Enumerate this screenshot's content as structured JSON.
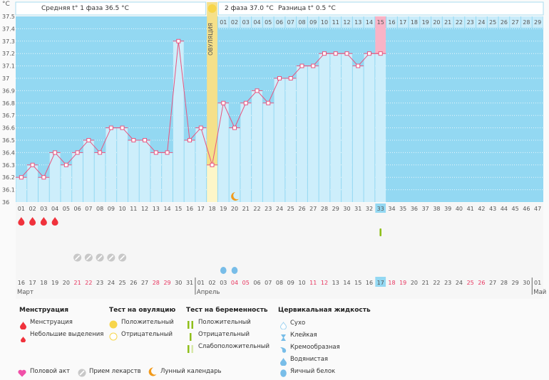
{
  "header": {
    "phase1_label": "Средняя t° 1 фаза 36.5 °C",
    "phase2_label": "2 фаза 37.0 °C",
    "difference_label": "Разница t° 0.5 °C",
    "ovulation_label": "ОВУЛЯЦИЯ",
    "unit": "°C"
  },
  "chart_data": {
    "type": "line",
    "ylabel": "°C",
    "ylim": [
      36.0,
      37.5
    ],
    "y_ticks": [
      "36",
      "36.1",
      "36.2",
      "36.3",
      "36.4",
      "36.5",
      "36.6",
      "36.7",
      "36.8",
      "36.9",
      "37",
      "37.1",
      "37.2",
      "37.3",
      "37.4",
      "37.5"
    ],
    "grid": true,
    "cycle_days": [
      "01",
      "02",
      "03",
      "04",
      "05",
      "06",
      "07",
      "08",
      "09",
      "10",
      "11",
      "12",
      "13",
      "14",
      "15",
      "16",
      "17",
      "18",
      "19",
      "20",
      "21",
      "22",
      "23",
      "24",
      "25",
      "26",
      "27",
      "28",
      "29",
      "30",
      "31",
      "32",
      "33",
      "34",
      "35",
      "36",
      "37",
      "38",
      "39",
      "40",
      "41",
      "42",
      "43",
      "44",
      "45",
      "46",
      "47"
    ],
    "phase2_days": [
      "01",
      "02",
      "03",
      "04",
      "05",
      "06",
      "07",
      "08",
      "09",
      "10",
      "11",
      "12",
      "13",
      "14",
      "15",
      "16",
      "17",
      "18",
      "19",
      "20",
      "21",
      "22",
      "23",
      "24",
      "25",
      "26",
      "27",
      "28",
      "29"
    ],
    "temperatures": [
      36.2,
      36.3,
      36.2,
      36.4,
      36.3,
      36.4,
      36.5,
      36.4,
      36.6,
      36.6,
      36.5,
      36.5,
      36.4,
      36.4,
      37.3,
      36.5,
      36.6,
      36.3,
      36.8,
      36.6,
      36.8,
      36.9,
      36.8,
      37.0,
      37.0,
      37.1,
      37.1,
      37.2,
      37.2,
      37.2,
      37.1,
      37.2,
      37.2
    ],
    "ovulation_day": 18,
    "current_day": 33,
    "line_color": "#e8547f"
  },
  "markers": {
    "menstruation_days": [
      1,
      2,
      3,
      4
    ],
    "pregnancy_test_negative_days": [
      33
    ],
    "medication_days": [
      6,
      7,
      8,
      9,
      10
    ],
    "egg_white_days": [
      19,
      20
    ],
    "moon_days": [
      20
    ]
  },
  "calendar": {
    "dates": [
      "16",
      "17",
      "18",
      "19",
      "20",
      "21",
      "22",
      "23",
      "24",
      "25",
      "26",
      "27",
      "28",
      "29",
      "30",
      "31",
      "01",
      "02",
      "03",
      "04",
      "05",
      "06",
      "07",
      "08",
      "09",
      "10",
      "11",
      "12",
      "13",
      "14",
      "15",
      "16",
      "17",
      "18",
      "19",
      "20",
      "21",
      "22",
      "23",
      "24",
      "25",
      "26",
      "27",
      "28",
      "29",
      "30",
      "01"
    ],
    "weekend_indices": [
      5,
      6,
      12,
      13,
      19,
      20,
      26,
      27,
      33,
      34,
      40,
      41
    ],
    "months": [
      {
        "label": "Март",
        "start": 1
      },
      {
        "label": "Апрель",
        "start": 17
      },
      {
        "label": "Май",
        "start": 47
      }
    ]
  },
  "legend": {
    "menstruation": {
      "title": "Менструация",
      "items": [
        "Менструация",
        "Небольшие выделения"
      ]
    },
    "ovulation_test": {
      "title": "Тест на овуляцию",
      "items": [
        "Положительный",
        "Отрицательный"
      ]
    },
    "pregnancy_test": {
      "title": "Тест на беременность",
      "items": [
        "Положительный",
        "Отрицательный",
        "Слабоположительный"
      ]
    },
    "cervical_fluid": {
      "title": "Цервикальная жидкость",
      "items": [
        "Сухо",
        "Клейкая",
        "Кремообразная",
        "Водянистая",
        "Яичный белок"
      ]
    },
    "other": [
      "Половой акт",
      "Прием лекарств",
      "Лунный календарь"
    ]
  },
  "colors": {
    "chart_bg": "#93d8f2",
    "bar": "#cdeefb",
    "ovulation": "#f5e08a",
    "current": "#f9b3c6",
    "weekend": "#e8355f",
    "menstruation": "#f0323c",
    "pill": "#c8c8c8",
    "egg_white": "#78bde8",
    "test": "#8fbf1a"
  }
}
